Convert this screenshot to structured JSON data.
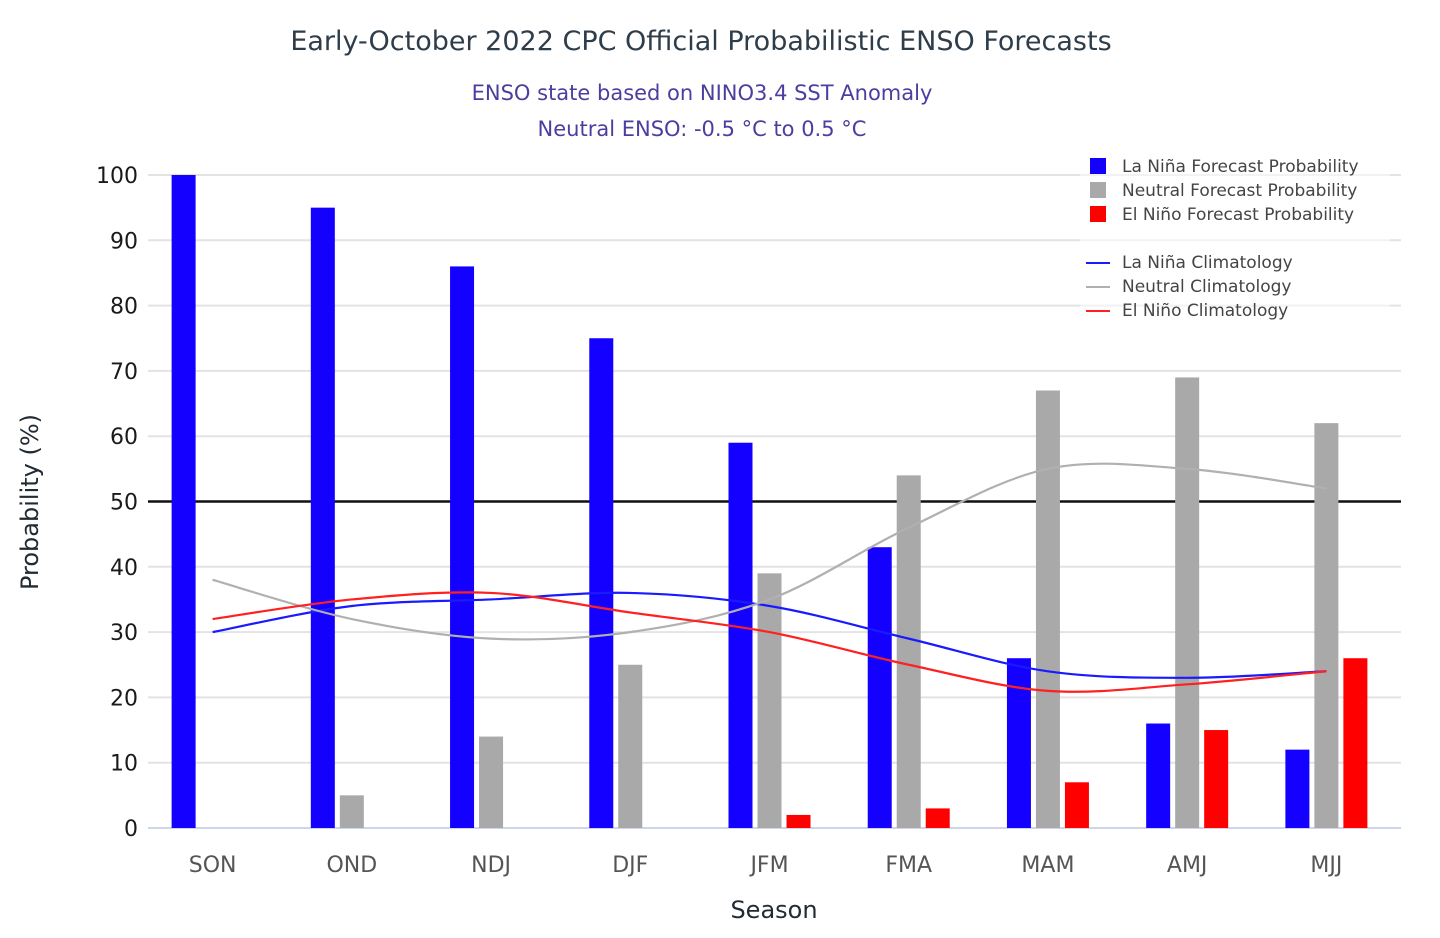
{
  "chart_data": {
    "type": "bar",
    "title": "Early-October 2022 CPC Official Probabilistic ENSO Forecasts",
    "subtitle_lines": [
      "ENSO state based on NINO3.4 SST Anomaly",
      "Neutral ENSO: -0.5 °C to 0.5 °C"
    ],
    "xlabel": "Season",
    "ylabel": "Probability (%)",
    "ylim": [
      0,
      100
    ],
    "yticks": [
      0,
      10,
      20,
      30,
      40,
      50,
      60,
      70,
      80,
      90,
      100
    ],
    "reference_line_y": 50,
    "grid": true,
    "legend_position": "top-right",
    "categories": [
      "SON",
      "OND",
      "NDJ",
      "DJF",
      "JFM",
      "FMA",
      "MAM",
      "AMJ",
      "MJJ"
    ],
    "series": [
      {
        "name": "La Niña Forecast Probability",
        "kind": "bar",
        "color": "#1400ff",
        "values": [
          100,
          95,
          86,
          75,
          59,
          43,
          26,
          16,
          12
        ]
      },
      {
        "name": "Neutral Forecast Probability",
        "kind": "bar",
        "color": "#a9a9a9",
        "values": [
          0,
          5,
          14,
          25,
          39,
          54,
          67,
          69,
          62
        ]
      },
      {
        "name": "El Niño Forecast Probability",
        "kind": "bar",
        "color": "#ff0000",
        "values": [
          0,
          0,
          0,
          0,
          2,
          3,
          7,
          15,
          26
        ]
      },
      {
        "name": "La Niña Climatology",
        "kind": "line",
        "color": "#1a1aff",
        "values": [
          30,
          34,
          35,
          36,
          34,
          29,
          24,
          23,
          24
        ]
      },
      {
        "name": "Neutral Climatology",
        "kind": "line",
        "color": "#b0b0b0",
        "values": [
          38,
          32,
          29,
          30,
          35,
          46,
          55,
          55,
          52
        ]
      },
      {
        "name": "El Niño Climatology",
        "kind": "line",
        "color": "#ff2020",
        "values": [
          32,
          35,
          36,
          33,
          30,
          25,
          21,
          22,
          24
        ]
      }
    ]
  }
}
